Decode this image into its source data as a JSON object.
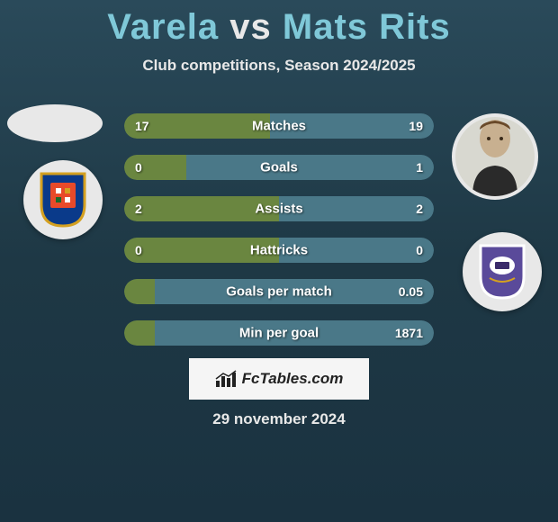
{
  "title": {
    "p1": "Varela",
    "vs": "vs",
    "p2": "Mats Rits"
  },
  "subtitle": "Club competitions, Season 2024/2025",
  "colors": {
    "bar_bg": "#2e5260",
    "bar_left": "#6a8640",
    "bar_right": "#3a6a78",
    "bar_right_fill": "#4a7888"
  },
  "club_left_shield": {
    "bg": "#0a3a8a",
    "border": "#d4a020"
  },
  "club_right_shield": {
    "bg": "#5a4a9a",
    "border": "#d8d8e0"
  },
  "stats": [
    {
      "label": "Matches",
      "l": "17",
      "r": "19",
      "lw": 47,
      "rw": 53
    },
    {
      "label": "Goals",
      "l": "0",
      "r": "1",
      "lw": 20,
      "rw": 80
    },
    {
      "label": "Assists",
      "l": "2",
      "r": "2",
      "lw": 50,
      "rw": 50
    },
    {
      "label": "Hattricks",
      "l": "0",
      "r": "0",
      "lw": 50,
      "rw": 50
    },
    {
      "label": "Goals per match",
      "l": "",
      "r": "0.05",
      "lw": 10,
      "rw": 90
    },
    {
      "label": "Min per goal",
      "l": "",
      "r": "1871",
      "lw": 10,
      "rw": 90
    }
  ],
  "brand": "FcTables.com",
  "date": "29 november 2024"
}
